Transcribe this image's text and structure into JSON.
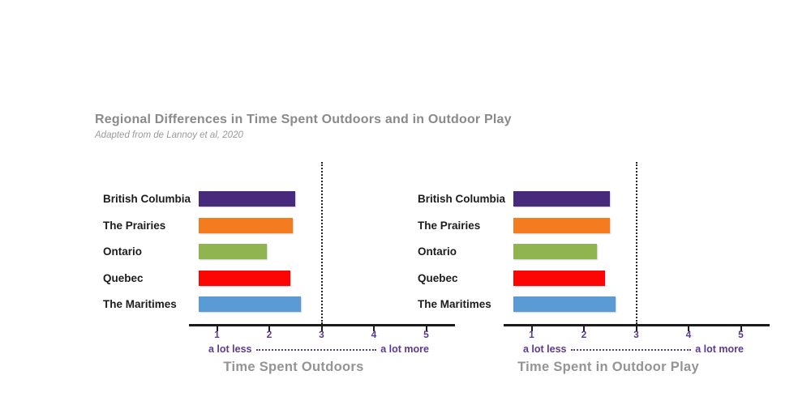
{
  "header": {
    "title": "Regional Differences in Time Spent Outdoors and in Outdoor Play",
    "subtitle": "Adapted from de Lannoy et al, 2020"
  },
  "colors": {
    "accent_purple_text": "#5b3a94",
    "title_gray": "#8a8a8a",
    "axis_black": "#1b1b1b"
  },
  "chart_data": [
    {
      "type": "bar",
      "orientation": "horizontal",
      "title": "Time Spent Outdoors",
      "categories": [
        "British Columbia",
        "The Prairies",
        "Ontario",
        "Quebec",
        "The Maritimes"
      ],
      "values": [
        2.5,
        2.45,
        1.95,
        2.4,
        2.6
      ],
      "bar_colors": [
        "#472a7c",
        "#f47b20",
        "#90b450",
        "#fb0505",
        "#5b9bd5"
      ],
      "xticks": [
        1,
        2,
        3,
        4,
        5
      ],
      "xlim": [
        0.65,
        5.5
      ],
      "reference_line_x": 3,
      "scale_min_label": "a lot less",
      "scale_max_label": "a lot more",
      "grid": false,
      "legend": "none"
    },
    {
      "type": "bar",
      "orientation": "horizontal",
      "title": "Time Spent in Outdoor Play",
      "categories": [
        "British Columbia",
        "The Prairies",
        "Ontario",
        "Quebec",
        "The Maritimes"
      ],
      "values": [
        2.5,
        2.5,
        2.25,
        2.4,
        2.6
      ],
      "bar_colors": [
        "#472a7c",
        "#f47b20",
        "#90b450",
        "#fb0505",
        "#5b9bd5"
      ],
      "xticks": [
        1,
        2,
        3,
        4,
        5
      ],
      "xlim": [
        0.65,
        5.5
      ],
      "reference_line_x": 3,
      "scale_min_label": "a lot less",
      "scale_max_label": "a lot more",
      "grid": false,
      "legend": "none"
    }
  ]
}
